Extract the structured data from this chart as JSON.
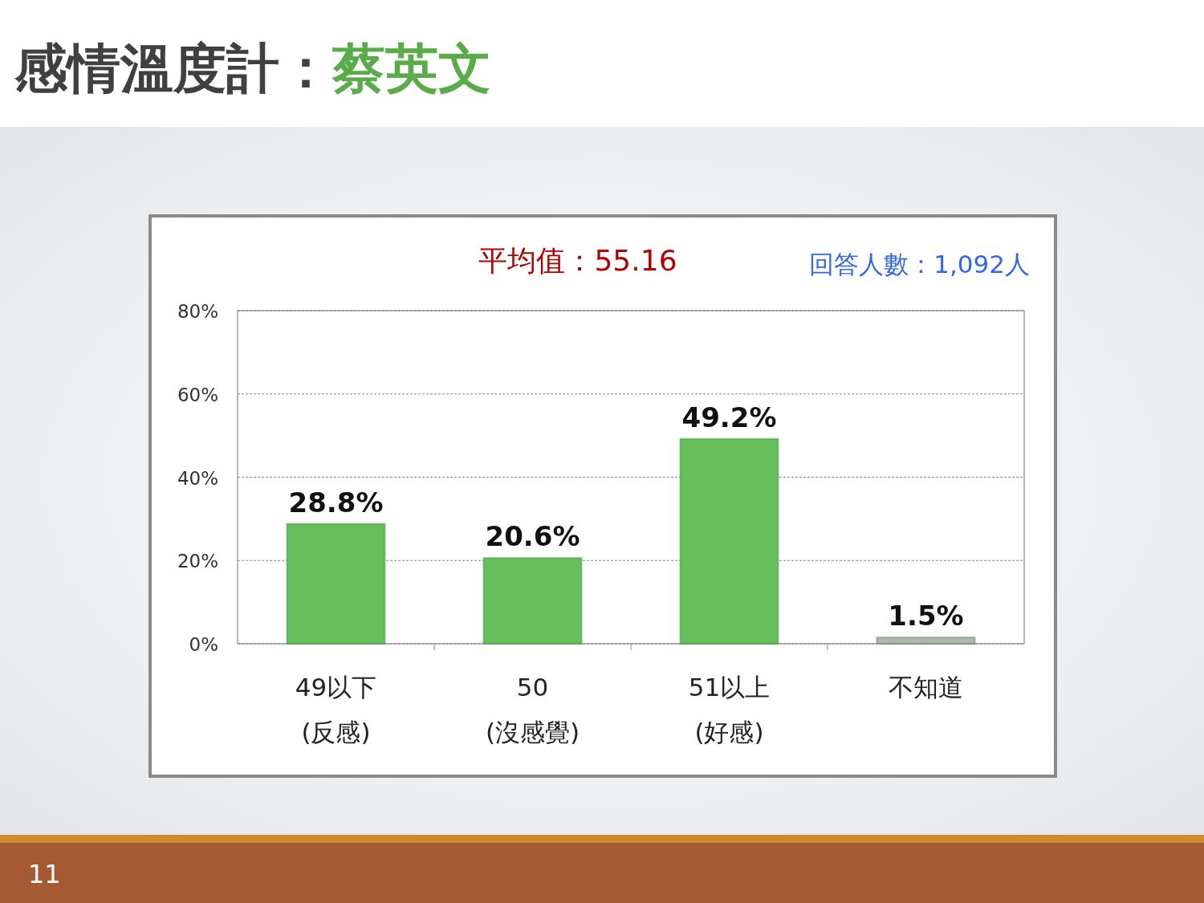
{
  "chart_data": {
    "type": "bar",
    "title": "感情溫度計：蔡英文",
    "subtitle": "平均值：55.16",
    "annotations": [
      "回答人數：1,092人",
      "11"
    ],
    "categories": [
      "49以下\n(反感)",
      "50\n(沒感覺)",
      "51以上\n(好感)",
      "不知道"
    ],
    "values": [
      28.8,
      20.6,
      49.2,
      1.5
    ],
    "colors": [
      "#66bf5c",
      "#66bf5c",
      "#66bf5c",
      "#b4b4b4"
    ],
    "value_labels": [
      "28.8%",
      "20.6%",
      "49.2%",
      "1.5%"
    ],
    "ylim": [
      0,
      80
    ],
    "yticks": [
      {
        "value": 0,
        "label": "0%"
      },
      {
        "value": 20,
        "label": "20%"
      },
      {
        "value": 40,
        "label": "40%"
      },
      {
        "value": 60,
        "label": "60%"
      },
      {
        "value": 80,
        "label": "80%"
      }
    ],
    "grid": "y"
  }
}
